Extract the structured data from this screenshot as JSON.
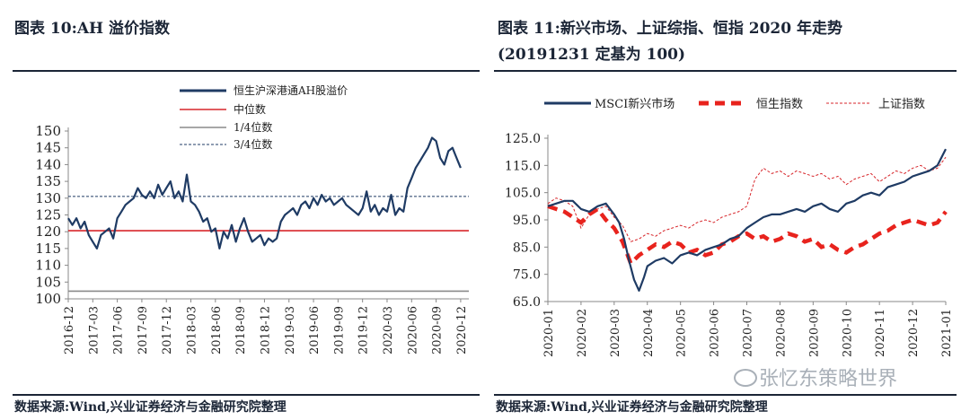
{
  "left": {
    "title": "图表 10:AH 溢价指数",
    "source": "数据来源:Wind,兴业证券经济与金融研究院整理",
    "chart_data": {
      "type": "line",
      "y_ticks": [
        "150",
        "145",
        "140",
        "135",
        "130",
        "125",
        "120",
        "115",
        "110",
        "105",
        "100"
      ],
      "ylim": [
        100,
        150
      ],
      "xlim": [
        0,
        49
      ],
      "x_ticks": [
        "2016-12",
        "2017-03",
        "2017-06",
        "2017-09",
        "2017-12",
        "2018-03",
        "2018-06",
        "2018-09",
        "2018-12",
        "2019-03",
        "2019-06",
        "2019-09",
        "2019-12",
        "2020-03",
        "2020-06",
        "2020-09",
        "2020-12"
      ],
      "legend": [
        "恒生沪深港通AH股溢价",
        "中位数",
        "1/4位数",
        "3/4位数"
      ],
      "series": [
        {
          "name": "恒生沪深港通AH股溢价",
          "color": "#1f3b64",
          "x": [
            0,
            0.5,
            1,
            1.5,
            2,
            2.5,
            3,
            3.5,
            4,
            4.5,
            5,
            5.5,
            6,
            6.5,
            7,
            7.5,
            8,
            8.5,
            9,
            9.5,
            10,
            10.5,
            11,
            11.5,
            12,
            12.5,
            13,
            13.5,
            14,
            14.5,
            15,
            15.5,
            16,
            16.5,
            17,
            17.5,
            18,
            18.5,
            19,
            19.5,
            20,
            20.5,
            21,
            21.5,
            22,
            22.5,
            23,
            23.5,
            24,
            24.5,
            25,
            25.5,
            26,
            26.5,
            27,
            27.5,
            28,
            28.5,
            29,
            29.5,
            30,
            30.5,
            31,
            31.5,
            32,
            32.5,
            33,
            33.5,
            34,
            34.5,
            35,
            35.5,
            36,
            36.5,
            37,
            37.5,
            38,
            38.5,
            39,
            39.5,
            40,
            40.5,
            41,
            41.5,
            42,
            42.5,
            43,
            43.5,
            44,
            44.5,
            45,
            45.5,
            46,
            46.5,
            47,
            47.5,
            48
          ],
          "y": [
            124,
            122,
            124,
            121,
            123,
            119,
            117,
            115,
            119,
            120,
            121,
            118,
            124,
            126,
            128,
            129,
            130,
            133,
            131,
            130,
            132,
            130,
            134,
            131,
            133,
            135,
            130,
            132,
            129,
            137,
            129,
            128,
            126,
            123,
            124,
            120,
            121,
            115,
            120,
            118,
            122,
            117,
            121,
            124,
            120,
            117,
            118,
            119,
            116,
            118,
            117,
            118,
            123,
            125,
            126,
            127,
            125,
            128,
            129,
            127,
            130,
            128,
            131,
            129,
            130,
            128,
            129,
            130,
            128,
            127,
            126,
            125,
            127,
            132,
            126,
            128,
            125,
            127,
            126,
            131,
            125,
            127,
            126,
            133,
            136,
            139,
            141,
            143,
            145,
            148,
            147,
            142,
            140,
            144,
            145,
            142,
            139
          ]
        },
        {
          "name": "中位数",
          "value": 120.3,
          "color": "#d7262b"
        },
        {
          "name": "1/4位数",
          "value": 102.3,
          "color": "#8a8a8a"
        },
        {
          "name": "3/4位数",
          "value": 130.5,
          "color": "#1f3b64"
        }
      ]
    }
  },
  "right": {
    "title_line1": "图表 11:新兴市场、上证综指、恒指 2020 年走势",
    "title_line2": "(20191231 定基为 100)",
    "source": "数据来源:Wind,兴业证券经济与金融研究院整理",
    "chart_data": {
      "type": "line",
      "y_ticks": [
        "125.0",
        "115.0",
        "105.0",
        "95.0",
        "85.0",
        "75.0",
        "65.0"
      ],
      "ylim": [
        65,
        125
      ],
      "xlim": [
        0,
        12
      ],
      "x_ticks": [
        "2020-01",
        "2020-02",
        "2020-03",
        "2020-04",
        "2020-05",
        "2020-06",
        "2020-07",
        "2020-08",
        "2020-09",
        "2020-10",
        "2020-11",
        "2020-12",
        "2021-01"
      ],
      "legend": [
        "MSCI新兴市场",
        "恒生指数",
        "上证指数"
      ],
      "series": [
        {
          "name": "MSCI新兴市场",
          "color": "#1f3b64",
          "x": [
            0,
            0.25,
            0.5,
            0.75,
            1,
            1.25,
            1.5,
            1.75,
            2,
            2.15,
            2.3,
            2.45,
            2.6,
            2.75,
            2.9,
            3,
            3.25,
            3.5,
            3.75,
            4,
            4.25,
            4.5,
            4.75,
            5,
            5.25,
            5.5,
            5.75,
            6,
            6.25,
            6.5,
            6.75,
            7,
            7.25,
            7.5,
            7.75,
            8,
            8.25,
            8.5,
            8.75,
            9,
            9.25,
            9.5,
            9.75,
            10,
            10.25,
            10.5,
            10.75,
            11,
            11.25,
            11.5,
            11.75,
            12
          ],
          "y": [
            100,
            101,
            102,
            102,
            99,
            98,
            100,
            101,
            97,
            94,
            88,
            80,
            73,
            69,
            74,
            78,
            80,
            81,
            79,
            82,
            83,
            82,
            84,
            85,
            86,
            88,
            89,
            92,
            94,
            96,
            97,
            97,
            98,
            99,
            98,
            100,
            101,
            99,
            98,
            101,
            102,
            104,
            105,
            104,
            107,
            108,
            109,
            111,
            112,
            113,
            115,
            121
          ]
        },
        {
          "name": "恒生指数",
          "color": "#e8231d",
          "x": [
            0,
            0.25,
            0.5,
            0.75,
            1,
            1.25,
            1.5,
            1.75,
            2,
            2.25,
            2.5,
            2.75,
            3,
            3.25,
            3.5,
            3.75,
            4,
            4.25,
            4.5,
            4.75,
            5,
            5.25,
            5.5,
            5.75,
            6,
            6.25,
            6.5,
            6.75,
            7,
            7.25,
            7.5,
            7.75,
            8,
            8.25,
            8.5,
            8.75,
            9,
            9.25,
            9.5,
            9.75,
            10,
            10.25,
            10.5,
            10.75,
            11,
            11.25,
            11.5,
            11.75,
            12
          ],
          "y": [
            100,
            99,
            98,
            96,
            94,
            97,
            99,
            95,
            92,
            87,
            79,
            82,
            84,
            86,
            85,
            87,
            86,
            83,
            84,
            82,
            83,
            86,
            87,
            89,
            90,
            88,
            89,
            87,
            88,
            90,
            89,
            87,
            88,
            85,
            86,
            84,
            83,
            85,
            86,
            88,
            90,
            91,
            93,
            94,
            95,
            94,
            93,
            94,
            98
          ]
        },
        {
          "name": "上证指数",
          "color": "#d7262b",
          "x": [
            0,
            0.25,
            0.5,
            0.75,
            1,
            1.25,
            1.5,
            1.75,
            2,
            2.25,
            2.5,
            2.75,
            3,
            3.25,
            3.5,
            3.75,
            4,
            4.25,
            4.5,
            4.75,
            5,
            5.25,
            5.5,
            5.75,
            6,
            6.25,
            6.5,
            6.75,
            7,
            7.25,
            7.5,
            7.75,
            8,
            8.25,
            8.5,
            8.75,
            9,
            9.25,
            9.5,
            9.75,
            10,
            10.25,
            10.5,
            10.75,
            11,
            11.25,
            11.5,
            11.75,
            12
          ],
          "y": [
            101,
            103,
            102,
            100,
            92,
            97,
            99,
            100,
            96,
            93,
            87,
            88,
            90,
            89,
            91,
            92,
            93,
            92,
            94,
            95,
            94,
            96,
            97,
            98,
            100,
            110,
            114,
            112,
            113,
            111,
            113,
            112,
            111,
            112,
            110,
            111,
            108,
            110,
            111,
            112,
            109,
            111,
            113,
            112,
            114,
            115,
            113,
            114,
            118
          ]
        }
      ]
    }
  },
  "watermark": "张忆东策略世界"
}
